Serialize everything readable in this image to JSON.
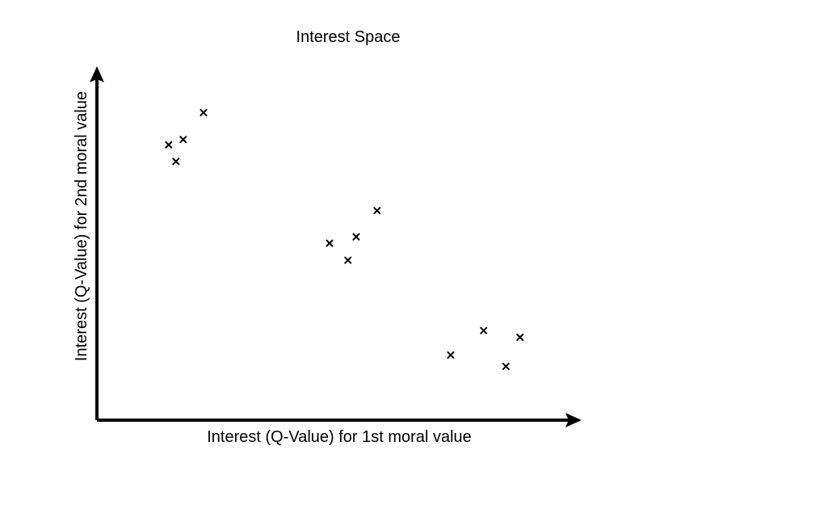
{
  "chart_data": {
    "type": "scatter",
    "title": "Interest Space",
    "xlabel": "Interest (Q-Value) for 1st moral value",
    "ylabel": "Interest (Q-Value) for 2nd moral value",
    "marker": "x",
    "grid": false,
    "legend": "none",
    "xlim": [
      0,
      10
    ],
    "ylim": [
      0,
      10
    ],
    "series": [
      {
        "points": [
          {
            "x": 1.48,
            "y": 7.78
          },
          {
            "x": 1.63,
            "y": 7.31
          },
          {
            "x": 1.78,
            "y": 7.93
          },
          {
            "x": 2.2,
            "y": 8.69
          },
          {
            "x": 4.8,
            "y": 5.0
          },
          {
            "x": 5.18,
            "y": 4.52
          },
          {
            "x": 5.35,
            "y": 5.18
          },
          {
            "x": 5.78,
            "y": 5.92
          },
          {
            "x": 7.3,
            "y": 1.84
          },
          {
            "x": 7.98,
            "y": 2.53
          },
          {
            "x": 8.44,
            "y": 1.52
          },
          {
            "x": 8.73,
            "y": 2.34
          }
        ]
      }
    ],
    "colors": {
      "ink": "#000000",
      "background": "#ffffff"
    }
  }
}
